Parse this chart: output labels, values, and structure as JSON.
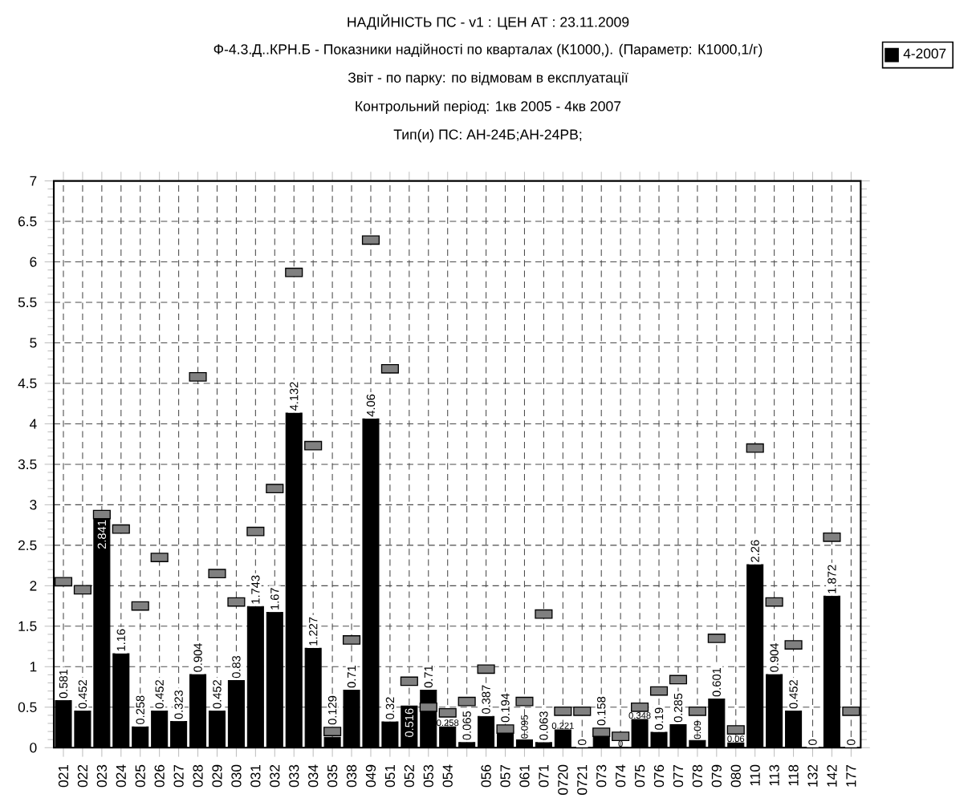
{
  "chart_data": {
    "type": "bar",
    "title": "НАДІЙНІСТЬ ПС - v1 :  ЦЕН  АТ :  23.11.2009",
    "subtitle": "Ф-4.3.Д..КРН.Б - Показники надійності по кварталах (К1000,).  (Параметр: К1000,1/г)",
    "annotations": [
      "Звіт - по парку: по відмовам в експлуатації",
      "Контрольний період: 1кв 2005 - 4кв 2007",
      "Тип(и) ПС: АН-24Б;АН-24РВ;"
    ],
    "categories": [
      "021",
      "022",
      "023",
      "024",
      "025",
      "026",
      "027",
      "028",
      "029",
      "030",
      "031",
      "032",
      "033",
      "034",
      "035",
      "038",
      "049",
      "051",
      "052",
      "053",
      "054",
      null,
      "056",
      "057",
      "061",
      "071",
      "0720",
      "0721",
      "073",
      "074",
      "075",
      "076",
      "077",
      "078",
      "079",
      "080",
      "110",
      "113",
      "118",
      "132",
      "142",
      "177"
    ],
    "series": [
      {
        "name": "4-2007",
        "color": "#000000",
        "values": [
          0.581,
          0.452,
          2.841,
          1.16,
          0.258,
          0.452,
          0.323,
          0.904,
          0.452,
          0.83,
          1.743,
          1.67,
          4.132,
          1.227,
          0.129,
          0.71,
          4.06,
          0.32,
          0.516,
          0.71,
          0.258,
          0.065,
          0.387,
          0.194,
          0.095,
          0.063,
          0.221,
          0,
          0.158,
          0,
          0.348,
          0.19,
          0.285,
          0.09,
          0.601,
          0.06,
          2.26,
          0.904,
          0.452,
          0,
          1.872,
          0
        ],
        "value_labels": [
          "0.581",
          "0.452",
          "2.841",
          "1.16",
          "0.258",
          "0.452",
          "0.323",
          "0.904",
          "0.452",
          "0.83",
          "1.743",
          "1.67",
          "4.132",
          "1.227",
          "0.129",
          "0.71",
          "4.06",
          "0.32",
          "0.516",
          "0.71",
          "0.258",
          "0.065",
          "0.387",
          "0.194",
          "0.095",
          "0.063",
          "0.221",
          "0",
          "0.158",
          "0",
          "0.348",
          "0.19",
          "0.285",
          "0.09",
          "0.601",
          "0.06",
          "2.26",
          "0.904",
          "0.452",
          "0",
          "1.872",
          "0"
        ]
      },
      {
        "type": "scatter",
        "color": "#808080",
        "marker": "square",
        "values": [
          2.05,
          1.95,
          2.88,
          2.7,
          1.75,
          2.35,
          null,
          4.58,
          2.15,
          1.8,
          2.67,
          3.2,
          5.87,
          3.73,
          0.2,
          1.33,
          6.27,
          4.68,
          0.82,
          0.5,
          0.43,
          0.57,
          0.97,
          0.23,
          0.57,
          1.65,
          0.45,
          0.45,
          0.19,
          0.14,
          0.5,
          0.7,
          0.84,
          0.45,
          1.35,
          0.22,
          3.7,
          1.8,
          1.27,
          null,
          2.6,
          0.45
        ]
      }
    ],
    "ylim": [
      0,
      7
    ],
    "yticks": [
      0,
      0.5,
      1,
      1.5,
      2,
      2.5,
      3,
      3.5,
      4,
      4.5,
      5,
      5.5,
      6,
      6.5,
      7
    ],
    "grid": true,
    "legend": "top right"
  }
}
